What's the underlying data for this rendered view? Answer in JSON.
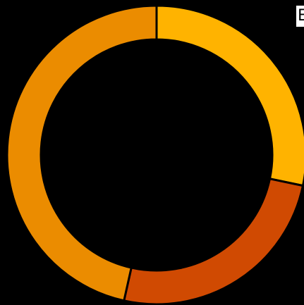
{
  "corner_label": "E",
  "chart_data": {
    "type": "pie",
    "variant": "donut",
    "categories": [
      "",
      "",
      ""
    ],
    "values": [
      28.3,
      25.2,
      46.5
    ],
    "colors": [
      "#FFB300",
      "#D04A02",
      "#EB8C00"
    ],
    "start_angle_deg": 0,
    "direction": "clockwise",
    "separator_color": "#000000",
    "grid": false,
    "legend": "none"
  }
}
